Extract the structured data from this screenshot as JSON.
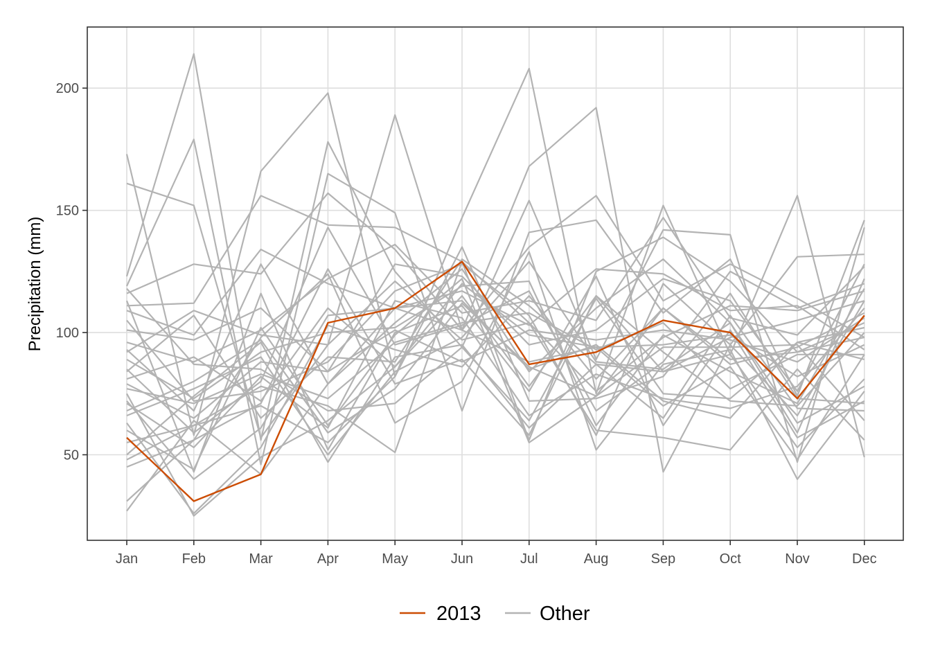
{
  "chart_data": {
    "type": "line",
    "title": "",
    "xlabel": "",
    "ylabel": "Precipitation (mm)",
    "categories": [
      "Jan",
      "Feb",
      "Mar",
      "Apr",
      "May",
      "Jun",
      "Jul",
      "Aug",
      "Sep",
      "Oct",
      "Nov",
      "Dec"
    ],
    "ylim": [
      15,
      225
    ],
    "yticks": [
      50,
      100,
      150,
      200
    ],
    "grid": true,
    "legend_position": "bottom",
    "legend": [
      {
        "label": "2013",
        "color": "#cc4c02"
      },
      {
        "label": "Other",
        "color": "#b3b3b3"
      }
    ],
    "highlight": {
      "name": "2013",
      "color": "#cc4c02",
      "values": [
        57,
        31,
        42,
        104,
        110,
        129,
        87,
        92,
        105,
        100,
        73,
        107
      ]
    },
    "other_color": "#b3b3b3",
    "others": [
      [
        173,
        58,
        166,
        198,
        82,
        147,
        208,
        75,
        152,
        91,
        156,
        49
      ],
      [
        161,
        152,
        57,
        95,
        189,
        101,
        168,
        192,
        43,
        95,
        131,
        132
      ],
      [
        123,
        214,
        56,
        178,
        125,
        94,
        154,
        89,
        142,
        140,
        47,
        143
      ],
      [
        119,
        179,
        46,
        165,
        149,
        68,
        141,
        146,
        108,
        130,
        74,
        146
      ],
      [
        116,
        128,
        124,
        157,
        134,
        101,
        135,
        156,
        113,
        128,
        114,
        98
      ],
      [
        111,
        112,
        156,
        144,
        143,
        129,
        56,
        125,
        139,
        121,
        92,
        104
      ],
      [
        109,
        99,
        134,
        120,
        110,
        117,
        103,
        126,
        124,
        109,
        111,
        93
      ],
      [
        101,
        97,
        110,
        84,
        128,
        123,
        95,
        101,
        122,
        113,
        76,
        128
      ],
      [
        96,
        88,
        101,
        122,
        136,
        108,
        113,
        105,
        147,
        106,
        99,
        127
      ],
      [
        93,
        68,
        128,
        79,
        104,
        126,
        84,
        110,
        130,
        104,
        59,
        122
      ],
      [
        92,
        109,
        99,
        95,
        121,
        97,
        104,
        76,
        98,
        111,
        109,
        117
      ],
      [
        85,
        59,
        80,
        143,
        95,
        103,
        117,
        68,
        88,
        125,
        110,
        120
      ],
      [
        84,
        107,
        65,
        90,
        88,
        130,
        111,
        87,
        84,
        98,
        105,
        113
      ],
      [
        81,
        90,
        72,
        110,
        86,
        120,
        99,
        94,
        95,
        99,
        82,
        95
      ],
      [
        79,
        65,
        88,
        84,
        101,
        88,
        101,
        97,
        101,
        97,
        88,
        106
      ],
      [
        77,
        71,
        83,
        73,
        96,
        104,
        108,
        93,
        104,
        77,
        91,
        91
      ],
      [
        75,
        25,
        49,
        64,
        86,
        115,
        78,
        115,
        92,
        72,
        70,
        100
      ],
      [
        72,
        40,
        61,
        107,
        110,
        113,
        85,
        95,
        72,
        65,
        96,
        89
      ],
      [
        71,
        53,
        82,
        61,
        113,
        106,
        66,
        83,
        73,
        69,
        78,
        110
      ],
      [
        68,
        80,
        97,
        59,
        77,
        112,
        86,
        74,
        110,
        89,
        92,
        98
      ],
      [
        66,
        77,
        90,
        50,
        84,
        98,
        129,
        88,
        85,
        104,
        63,
        78
      ],
      [
        63,
        26,
        53,
        103,
        93,
        86,
        115,
        81,
        110,
        87,
        94,
        108
      ],
      [
        60,
        44,
        102,
        62,
        99,
        122,
        55,
        74,
        94,
        94,
        95,
        64
      ],
      [
        55,
        62,
        70,
        55,
        82,
        135,
        72,
        73,
        82,
        116,
        73,
        71
      ],
      [
        50,
        74,
        96,
        47,
        90,
        95,
        61,
        87,
        65,
        107,
        69,
        68
      ],
      [
        48,
        62,
        78,
        70,
        51,
        129,
        104,
        60,
        57,
        52,
        85,
        56
      ],
      [
        45,
        56,
        98,
        124,
        63,
        80,
        133,
        52,
        87,
        93,
        40,
        76
      ],
      [
        31,
        56,
        71,
        126,
        79,
        89,
        58,
        115,
        84,
        91,
        53,
        81
      ],
      [
        27,
        64,
        42,
        79,
        110,
        101,
        88,
        94,
        70,
        86,
        48,
        91
      ],
      [
        118,
        87,
        85,
        68,
        71,
        94,
        64,
        114,
        75,
        73,
        96,
        102
      ],
      [
        113,
        43,
        116,
        52,
        100,
        111,
        76,
        123,
        62,
        101,
        57,
        72
      ],
      [
        105,
        72,
        76,
        88,
        117,
        128,
        107,
        58,
        120,
        95,
        66,
        113
      ],
      [
        89,
        73,
        92,
        100,
        102,
        119,
        121,
        62,
        99,
        84,
        71,
        118
      ]
    ]
  }
}
